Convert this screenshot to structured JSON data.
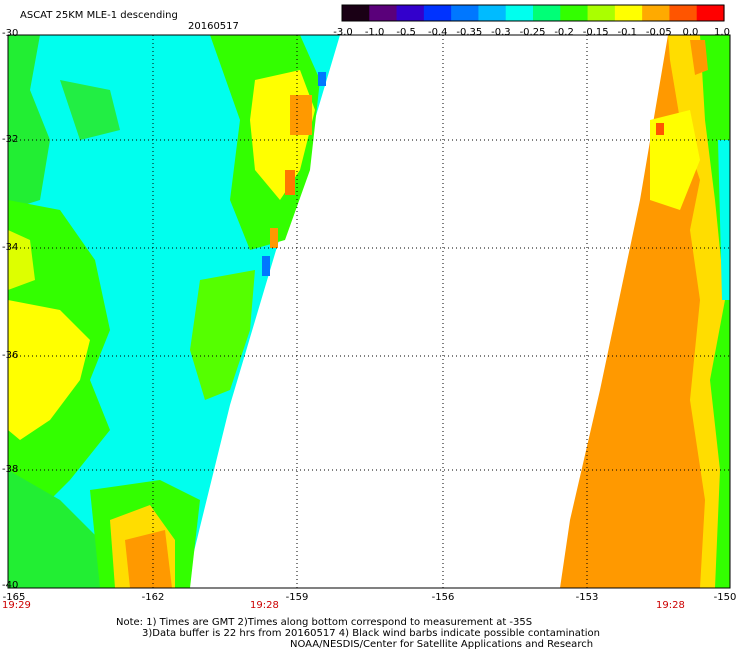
{
  "header": {
    "title": "ASCAT 25KM MLE-1 descending",
    "date": "20160517"
  },
  "colorbar": {
    "labels": [
      "-3.0",
      "-1.0",
      "-0.5",
      "-0.4",
      "-0.35",
      "-0.3",
      "-0.25",
      "-0.2",
      "-0.15",
      "-0.1",
      "-0.05",
      "0.0",
      "1.0"
    ],
    "colors": [
      "#1a0015",
      "#5a007a",
      "#3300cc",
      "#0033ff",
      "#0077ff",
      "#00bbff",
      "#00ffee",
      "#00ff77",
      "#33ff00",
      "#aaff00",
      "#ffff00",
      "#ffaa00",
      "#ff5500",
      "#ff0000"
    ]
  },
  "map": {
    "lat_labels": [
      "-30",
      "-32",
      "-34",
      "-36",
      "-38",
      "-40"
    ],
    "lon_labels": [
      "-165",
      "-162",
      "-159",
      "-156",
      "-153",
      "-150"
    ],
    "time_labels": [
      "19:29",
      "19:28",
      "19:28"
    ],
    "lat_range": [
      -40,
      -30
    ],
    "lon_range": [
      -165,
      -150
    ],
    "grid": "dotted"
  },
  "notes": {
    "line1": "Note: 1) Times are GMT 2)Times along bottom correspond to measurement at -35S",
    "line2": "3)Data buffer is 22 hrs from 20160517 4) Black wind barbs indicate possible contamination",
    "line3": "NOAA/NESDIS/Center for Satellite Applications and Research"
  }
}
